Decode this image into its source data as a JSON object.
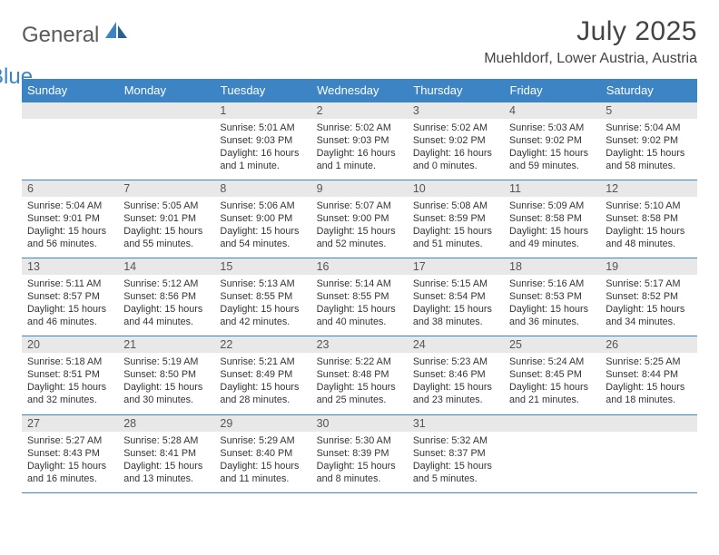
{
  "logo": {
    "text1": "General",
    "text2": "Blue"
  },
  "title": "July 2025",
  "location": "Muehldorf, Lower Austria, Austria",
  "colors": {
    "header_bg": "#3d84c4",
    "header_text": "#ffffff",
    "daynum_bg": "#e8e8e8",
    "border": "#3d84c4",
    "text": "#333333",
    "title_text": "#444444"
  },
  "weekdays": [
    "Sunday",
    "Monday",
    "Tuesday",
    "Wednesday",
    "Thursday",
    "Friday",
    "Saturday"
  ],
  "weeks": [
    [
      null,
      null,
      {
        "n": "1",
        "sr": "Sunrise: 5:01 AM",
        "ss": "Sunset: 9:03 PM",
        "dl": "Daylight: 16 hours and 1 minute."
      },
      {
        "n": "2",
        "sr": "Sunrise: 5:02 AM",
        "ss": "Sunset: 9:03 PM",
        "dl": "Daylight: 16 hours and 1 minute."
      },
      {
        "n": "3",
        "sr": "Sunrise: 5:02 AM",
        "ss": "Sunset: 9:02 PM",
        "dl": "Daylight: 16 hours and 0 minutes."
      },
      {
        "n": "4",
        "sr": "Sunrise: 5:03 AM",
        "ss": "Sunset: 9:02 PM",
        "dl": "Daylight: 15 hours and 59 minutes."
      },
      {
        "n": "5",
        "sr": "Sunrise: 5:04 AM",
        "ss": "Sunset: 9:02 PM",
        "dl": "Daylight: 15 hours and 58 minutes."
      }
    ],
    [
      {
        "n": "6",
        "sr": "Sunrise: 5:04 AM",
        "ss": "Sunset: 9:01 PM",
        "dl": "Daylight: 15 hours and 56 minutes."
      },
      {
        "n": "7",
        "sr": "Sunrise: 5:05 AM",
        "ss": "Sunset: 9:01 PM",
        "dl": "Daylight: 15 hours and 55 minutes."
      },
      {
        "n": "8",
        "sr": "Sunrise: 5:06 AM",
        "ss": "Sunset: 9:00 PM",
        "dl": "Daylight: 15 hours and 54 minutes."
      },
      {
        "n": "9",
        "sr": "Sunrise: 5:07 AM",
        "ss": "Sunset: 9:00 PM",
        "dl": "Daylight: 15 hours and 52 minutes."
      },
      {
        "n": "10",
        "sr": "Sunrise: 5:08 AM",
        "ss": "Sunset: 8:59 PM",
        "dl": "Daylight: 15 hours and 51 minutes."
      },
      {
        "n": "11",
        "sr": "Sunrise: 5:09 AM",
        "ss": "Sunset: 8:58 PM",
        "dl": "Daylight: 15 hours and 49 minutes."
      },
      {
        "n": "12",
        "sr": "Sunrise: 5:10 AM",
        "ss": "Sunset: 8:58 PM",
        "dl": "Daylight: 15 hours and 48 minutes."
      }
    ],
    [
      {
        "n": "13",
        "sr": "Sunrise: 5:11 AM",
        "ss": "Sunset: 8:57 PM",
        "dl": "Daylight: 15 hours and 46 minutes."
      },
      {
        "n": "14",
        "sr": "Sunrise: 5:12 AM",
        "ss": "Sunset: 8:56 PM",
        "dl": "Daylight: 15 hours and 44 minutes."
      },
      {
        "n": "15",
        "sr": "Sunrise: 5:13 AM",
        "ss": "Sunset: 8:55 PM",
        "dl": "Daylight: 15 hours and 42 minutes."
      },
      {
        "n": "16",
        "sr": "Sunrise: 5:14 AM",
        "ss": "Sunset: 8:55 PM",
        "dl": "Daylight: 15 hours and 40 minutes."
      },
      {
        "n": "17",
        "sr": "Sunrise: 5:15 AM",
        "ss": "Sunset: 8:54 PM",
        "dl": "Daylight: 15 hours and 38 minutes."
      },
      {
        "n": "18",
        "sr": "Sunrise: 5:16 AM",
        "ss": "Sunset: 8:53 PM",
        "dl": "Daylight: 15 hours and 36 minutes."
      },
      {
        "n": "19",
        "sr": "Sunrise: 5:17 AM",
        "ss": "Sunset: 8:52 PM",
        "dl": "Daylight: 15 hours and 34 minutes."
      }
    ],
    [
      {
        "n": "20",
        "sr": "Sunrise: 5:18 AM",
        "ss": "Sunset: 8:51 PM",
        "dl": "Daylight: 15 hours and 32 minutes."
      },
      {
        "n": "21",
        "sr": "Sunrise: 5:19 AM",
        "ss": "Sunset: 8:50 PM",
        "dl": "Daylight: 15 hours and 30 minutes."
      },
      {
        "n": "22",
        "sr": "Sunrise: 5:21 AM",
        "ss": "Sunset: 8:49 PM",
        "dl": "Daylight: 15 hours and 28 minutes."
      },
      {
        "n": "23",
        "sr": "Sunrise: 5:22 AM",
        "ss": "Sunset: 8:48 PM",
        "dl": "Daylight: 15 hours and 25 minutes."
      },
      {
        "n": "24",
        "sr": "Sunrise: 5:23 AM",
        "ss": "Sunset: 8:46 PM",
        "dl": "Daylight: 15 hours and 23 minutes."
      },
      {
        "n": "25",
        "sr": "Sunrise: 5:24 AM",
        "ss": "Sunset: 8:45 PM",
        "dl": "Daylight: 15 hours and 21 minutes."
      },
      {
        "n": "26",
        "sr": "Sunrise: 5:25 AM",
        "ss": "Sunset: 8:44 PM",
        "dl": "Daylight: 15 hours and 18 minutes."
      }
    ],
    [
      {
        "n": "27",
        "sr": "Sunrise: 5:27 AM",
        "ss": "Sunset: 8:43 PM",
        "dl": "Daylight: 15 hours and 16 minutes."
      },
      {
        "n": "28",
        "sr": "Sunrise: 5:28 AM",
        "ss": "Sunset: 8:41 PM",
        "dl": "Daylight: 15 hours and 13 minutes."
      },
      {
        "n": "29",
        "sr": "Sunrise: 5:29 AM",
        "ss": "Sunset: 8:40 PM",
        "dl": "Daylight: 15 hours and 11 minutes."
      },
      {
        "n": "30",
        "sr": "Sunrise: 5:30 AM",
        "ss": "Sunset: 8:39 PM",
        "dl": "Daylight: 15 hours and 8 minutes."
      },
      {
        "n": "31",
        "sr": "Sunrise: 5:32 AM",
        "ss": "Sunset: 8:37 PM",
        "dl": "Daylight: 15 hours and 5 minutes."
      },
      null,
      null
    ]
  ]
}
